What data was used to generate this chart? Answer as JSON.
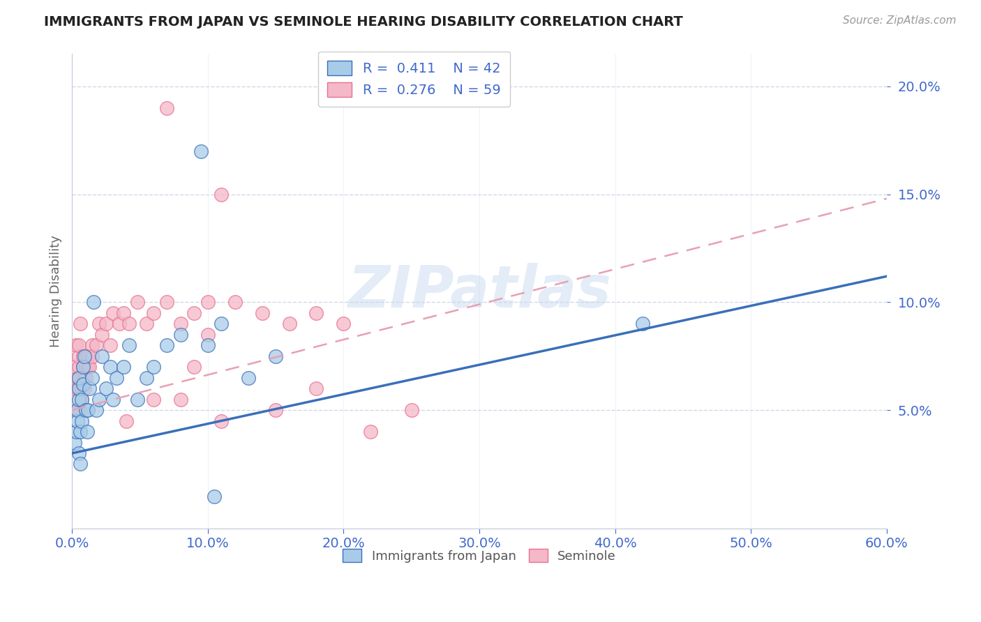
{
  "title": "IMMIGRANTS FROM JAPAN VS SEMINOLE HEARING DISABILITY CORRELATION CHART",
  "source": "Source: ZipAtlas.com",
  "ylabel": "Hearing Disability",
  "legend_label1": "Immigrants from Japan",
  "legend_label2": "Seminole",
  "R1": 0.411,
  "N1": 42,
  "R2": 0.276,
  "N2": 59,
  "xlim": [
    0.0,
    0.6
  ],
  "ylim": [
    -0.005,
    0.215
  ],
  "xticks": [
    0.0,
    0.1,
    0.2,
    0.3,
    0.4,
    0.5,
    0.6
  ],
  "yticks": [
    0.05,
    0.1,
    0.15,
    0.2
  ],
  "color_blue": "#a8cce8",
  "color_pink": "#f4b8c8",
  "color_blue_line": "#3a6fba",
  "color_pink_line": "#e87090",
  "color_pink_dash": "#e8a0b0",
  "blue_line_x0": 0.0,
  "blue_line_y0": 0.03,
  "blue_line_x1": 0.6,
  "blue_line_y1": 0.112,
  "pink_line_x0": 0.0,
  "pink_line_y0": 0.05,
  "pink_line_x1": 0.6,
  "pink_line_y1": 0.148,
  "blue_scatter_x": [
    0.002,
    0.003,
    0.004,
    0.004,
    0.005,
    0.005,
    0.005,
    0.005,
    0.006,
    0.006,
    0.007,
    0.007,
    0.008,
    0.008,
    0.009,
    0.01,
    0.011,
    0.012,
    0.013,
    0.015,
    0.016,
    0.018,
    0.02,
    0.022,
    0.025,
    0.028,
    0.03,
    0.033,
    0.038,
    0.042,
    0.048,
    0.055,
    0.06,
    0.07,
    0.08,
    0.095,
    0.1,
    0.11,
    0.13,
    0.15,
    0.42,
    0.105
  ],
  "blue_scatter_y": [
    0.035,
    0.04,
    0.045,
    0.05,
    0.055,
    0.06,
    0.065,
    0.03,
    0.025,
    0.04,
    0.045,
    0.055,
    0.062,
    0.07,
    0.075,
    0.05,
    0.04,
    0.05,
    0.06,
    0.065,
    0.1,
    0.05,
    0.055,
    0.075,
    0.06,
    0.07,
    0.055,
    0.065,
    0.07,
    0.08,
    0.055,
    0.065,
    0.07,
    0.08,
    0.085,
    0.17,
    0.08,
    0.09,
    0.065,
    0.075,
    0.09,
    0.01
  ],
  "pink_scatter_x": [
    0.002,
    0.002,
    0.003,
    0.003,
    0.004,
    0.004,
    0.005,
    0.005,
    0.005,
    0.006,
    0.006,
    0.007,
    0.007,
    0.007,
    0.008,
    0.008,
    0.009,
    0.009,
    0.01,
    0.01,
    0.01,
    0.012,
    0.012,
    0.013,
    0.015,
    0.015,
    0.018,
    0.02,
    0.022,
    0.025,
    0.028,
    0.03,
    0.035,
    0.038,
    0.042,
    0.048,
    0.055,
    0.06,
    0.07,
    0.08,
    0.09,
    0.1,
    0.11,
    0.12,
    0.14,
    0.16,
    0.18,
    0.2,
    0.22,
    0.25,
    0.07,
    0.09,
    0.11,
    0.15,
    0.18,
    0.04,
    0.06,
    0.08,
    0.1
  ],
  "pink_scatter_y": [
    0.06,
    0.07,
    0.08,
    0.05,
    0.06,
    0.065,
    0.07,
    0.075,
    0.08,
    0.09,
    0.05,
    0.055,
    0.06,
    0.065,
    0.07,
    0.075,
    0.06,
    0.065,
    0.07,
    0.075,
    0.065,
    0.07,
    0.075,
    0.07,
    0.08,
    0.075,
    0.08,
    0.09,
    0.085,
    0.09,
    0.08,
    0.095,
    0.09,
    0.095,
    0.09,
    0.1,
    0.09,
    0.095,
    0.1,
    0.09,
    0.095,
    0.1,
    0.15,
    0.1,
    0.095,
    0.09,
    0.095,
    0.09,
    0.04,
    0.05,
    0.19,
    0.07,
    0.045,
    0.05,
    0.06,
    0.045,
    0.055,
    0.055,
    0.085
  ],
  "watermark": "ZIPatlas",
  "title_color": "#222222",
  "axis_label_color": "#4169cd",
  "tick_color": "#4169cd",
  "grid_color": "#d0d8e8",
  "spine_color": "#c0c8d8"
}
